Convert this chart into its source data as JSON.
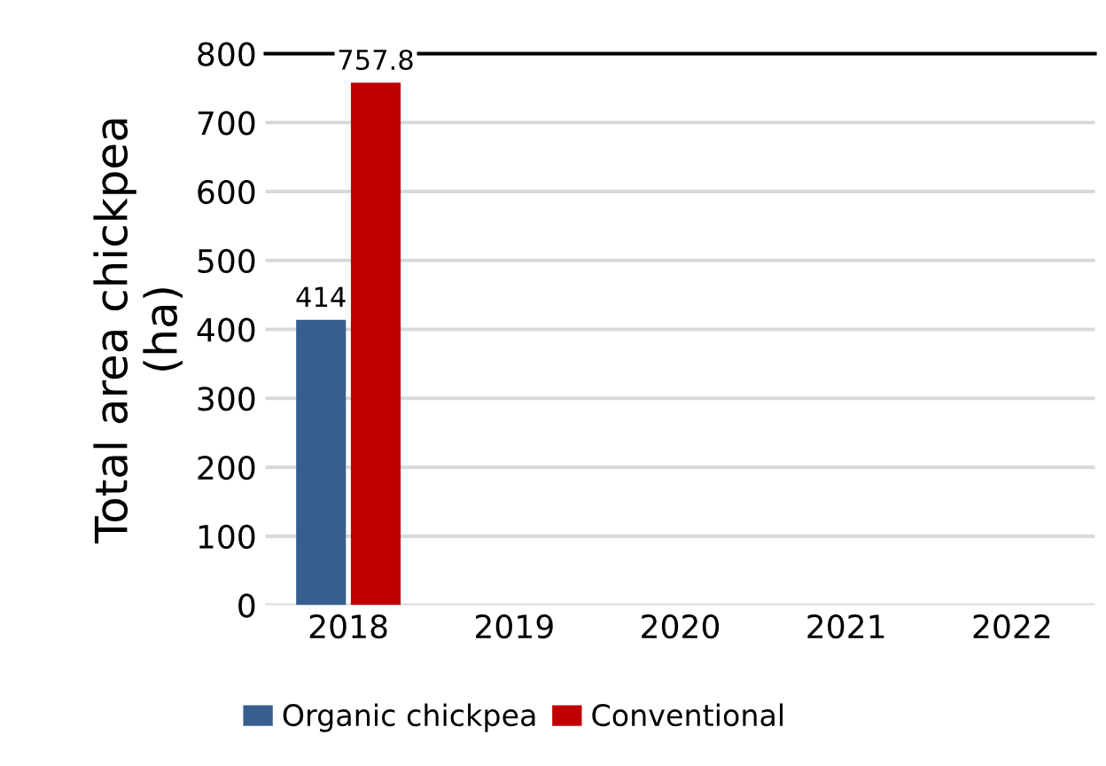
{
  "chart_data": {
    "type": "bar",
    "ylabel": "Total area chickpea\n(ha)",
    "categories": [
      "2018",
      "2019",
      "2020",
      "2021",
      "2022"
    ],
    "series": [
      {
        "name": "Organic chickpea",
        "color": "#375e8f",
        "values": [
          414,
          null,
          null,
          null,
          null
        ],
        "value_labels": [
          "414",
          null,
          null,
          null,
          null
        ]
      },
      {
        "name": "Conventional",
        "color": "#c00000",
        "values": [
          757.8,
          null,
          null,
          null,
          null
        ],
        "value_labels": [
          "757.8",
          null,
          null,
          null,
          null
        ]
      }
    ],
    "ylim": [
      0,
      800
    ],
    "yticks": [
      0,
      100,
      200,
      300,
      400,
      500,
      600,
      700,
      800
    ],
    "grid": "y",
    "legend": "bottom"
  }
}
